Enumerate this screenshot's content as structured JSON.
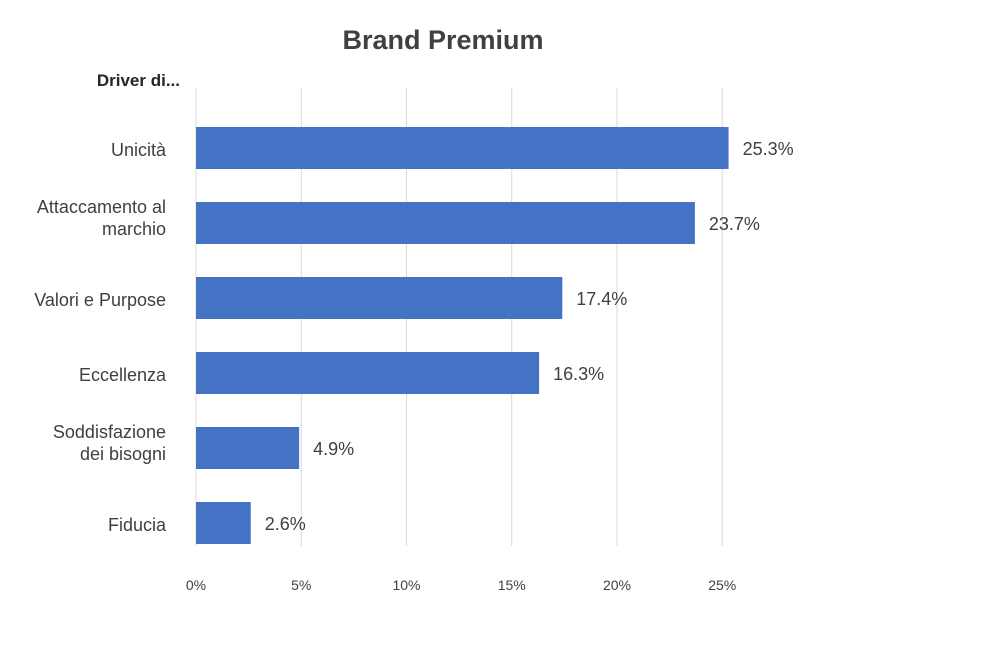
{
  "chart_data": {
    "type": "bar",
    "orientation": "horizontal",
    "title": "Brand Premium",
    "ylabel": "Driver di...",
    "xlabel": "",
    "categories": [
      "Unicità",
      "Attaccamento al marchio",
      "Valori e Purpose",
      "Eccellenza",
      "Soddisfazione dei bisogni",
      "Fiducia"
    ],
    "category_lines": [
      [
        "Unicità"
      ],
      [
        "Attaccamento al",
        "marchio"
      ],
      [
        "Valori e Purpose"
      ],
      [
        "Eccellenza"
      ],
      [
        "Soddisfazione",
        "dei bisogni"
      ],
      [
        "Fiducia"
      ]
    ],
    "values": [
      25.3,
      23.7,
      17.4,
      16.3,
      4.9,
      2.6
    ],
    "data_labels": [
      "25.3%",
      "23.7%",
      "17.4%",
      "16.3%",
      "4.9%",
      "2.6%"
    ],
    "xlim": [
      0,
      25
    ],
    "xticks": [
      0,
      5,
      10,
      15,
      20,
      25
    ],
    "xtick_labels": [
      "0%",
      "5%",
      "10%",
      "15%",
      "20%",
      "25%"
    ],
    "grid": "vertical",
    "legend": "none",
    "bar_color": "#4472c4"
  }
}
